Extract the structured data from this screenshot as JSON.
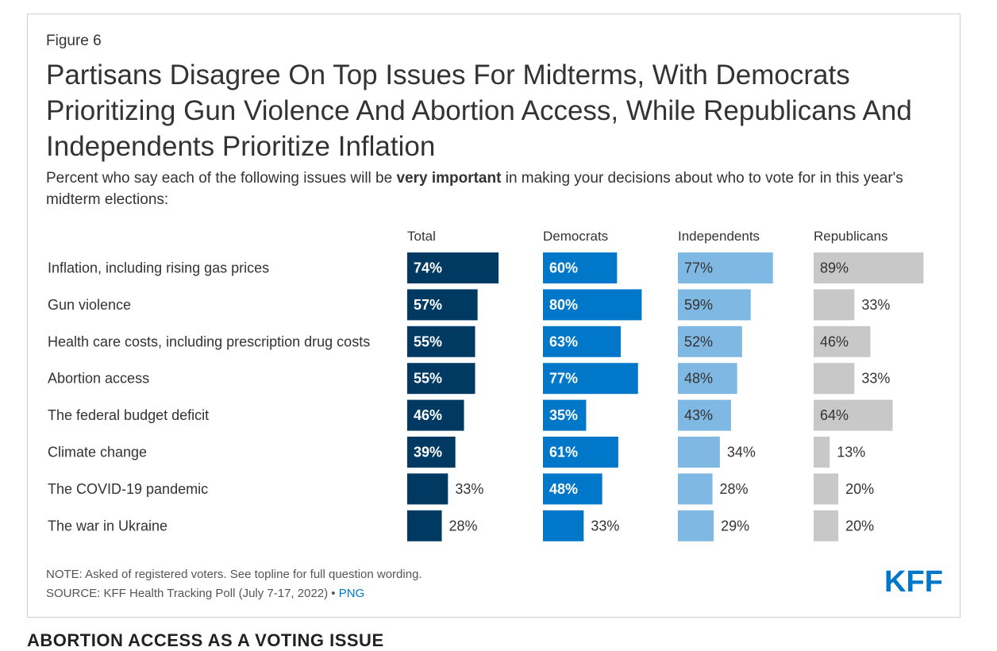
{
  "figure_label": "Figure 6",
  "title": "Partisans Disagree On Top Issues For Midterms, With Democrats Prioritizing Gun Violence And Abortion Access, While Republicans And Independents Prioritize Inflation",
  "subtitle": {
    "before": "Percent who say each of the following issues will be ",
    "bold": "very important",
    "after": " in making your decisions about who to vote for in this year's midterm elections:"
  },
  "note": "NOTE: Asked of registered voters. See topline for full question wording.",
  "source": "SOURCE: KFF Health Tracking Poll (July 7-17, 2022)",
  "source_separator": " • ",
  "png_link": "PNG",
  "logo_text": "KFF",
  "next_section_heading": "ABORTION ACCESS AS A VOTING ISSUE",
  "colors": {
    "total": "#003a63",
    "democrats": "#0077c8",
    "independents": "#7fb8e2",
    "republicans": "#c8c8c8",
    "brand": "#0077c8"
  },
  "chart_data": {
    "type": "bar",
    "orientation": "horizontal",
    "layout": "small-multiples",
    "title": "Partisans Disagree On Top Issues For Midterms, With Democrats Prioritizing Gun Violence And Abortion Access, While Republicans And Independents Prioritize Inflation",
    "xlabel": "",
    "ylabel": "",
    "unit": "%",
    "xlim": [
      0,
      100
    ],
    "grid": false,
    "legend": "none",
    "categories": [
      "Inflation, including rising gas prices",
      "Gun violence",
      "Health care costs, including prescription drug costs",
      "Abortion access",
      "The federal budget deficit",
      "Climate change",
      "The COVID-19 pandemic",
      "The war in Ukraine"
    ],
    "series": [
      {
        "name": "Total",
        "values": [
          74,
          57,
          55,
          55,
          46,
          39,
          33,
          28
        ]
      },
      {
        "name": "Democrats",
        "values": [
          60,
          80,
          63,
          77,
          35,
          61,
          48,
          33
        ]
      },
      {
        "name": "Independents",
        "values": [
          77,
          59,
          52,
          48,
          43,
          34,
          28,
          29
        ]
      },
      {
        "name": "Republicans",
        "values": [
          89,
          33,
          46,
          33,
          64,
          13,
          20,
          20
        ]
      }
    ]
  }
}
